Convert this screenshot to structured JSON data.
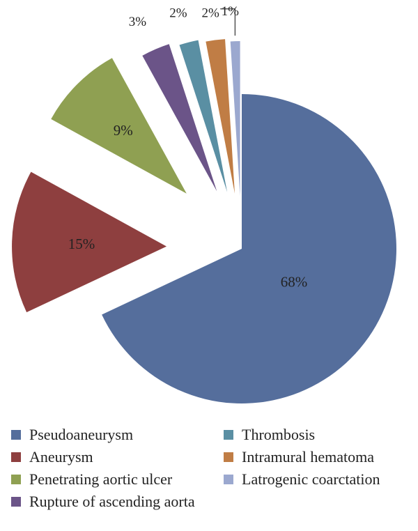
{
  "chart_data": {
    "type": "pie",
    "exploded": true,
    "slices": [
      {
        "label": "Pseudoaneurysm",
        "value": 68,
        "display": "68%",
        "color": "#556e9c"
      },
      {
        "label": "Aneurysm",
        "value": 15,
        "display": "15%",
        "color": "#8e3f3f"
      },
      {
        "label": "Penetrating aortic ulcer",
        "value": 9,
        "display": "9%",
        "color": "#8fa052"
      },
      {
        "label": "Rupture of ascending aorta",
        "value": 3,
        "display": "3%",
        "color": "#6b5488"
      },
      {
        "label": "Thrombosis",
        "value": 2,
        "display": "2%",
        "color": "#5a8fa3"
      },
      {
        "label": "Intramural hematoma",
        "value": 2,
        "display": "2%",
        "color": "#c07d45"
      },
      {
        "label": "Latrogenic coarctation",
        "value": 1,
        "display": "1%",
        "color": "#9ba8cf"
      }
    ],
    "legend_position": "bottom"
  },
  "legend": {
    "col1": [
      "Pseudoaneurysm",
      "Aneurysm",
      "Penetrating aortic ulcer",
      "Rupture of ascending aorta"
    ],
    "col2": [
      "Thrombosis",
      "Intramural hematoma",
      "Latrogenic coarctation"
    ]
  }
}
